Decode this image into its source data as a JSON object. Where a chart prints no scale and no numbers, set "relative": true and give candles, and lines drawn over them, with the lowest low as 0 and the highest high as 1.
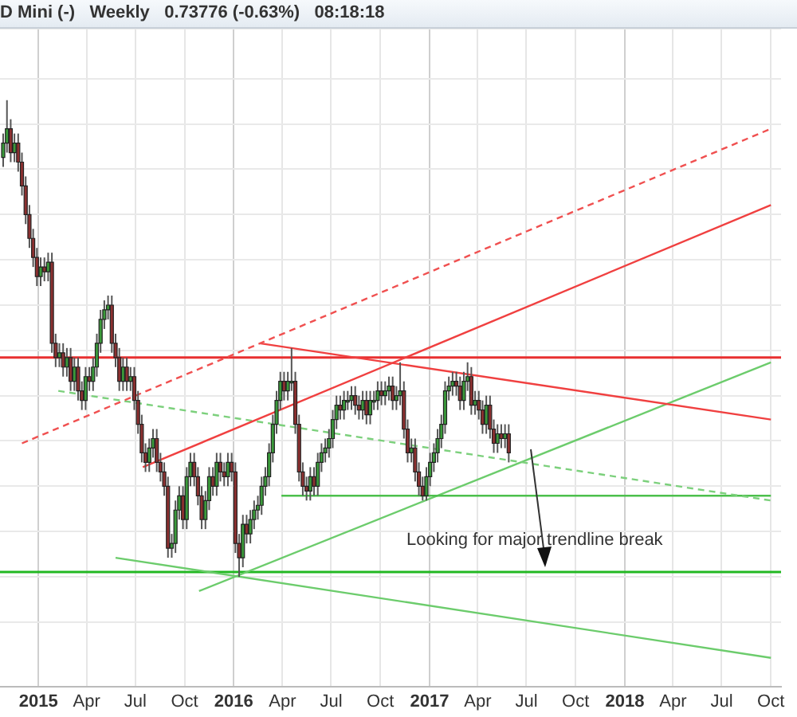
{
  "chart_data": {
    "type": "candlestick",
    "title": "D Mini (-)   Weekly   0.73776 (-0.63%)   08:18:18",
    "relative": true,
    "grid": true,
    "marker": "none",
    "x": [
      "2014-10-27",
      "2014-11-03",
      "2014-11-10",
      "2014-11-17",
      "2014-11-24",
      "2014-12-01",
      "2014-12-08",
      "2014-12-15",
      "2014-12-22",
      "2014-12-29",
      "2015-01-05",
      "2015-01-12",
      "2015-01-19",
      "2015-01-26",
      "2015-02-02",
      "2015-02-09",
      "2015-02-16",
      "2015-02-23",
      "2015-03-02",
      "2015-03-09",
      "2015-03-16",
      "2015-03-23",
      "2015-03-30",
      "2015-04-06",
      "2015-04-13",
      "2015-04-20",
      "2015-04-27",
      "2015-05-04",
      "2015-05-11",
      "2015-05-18",
      "2015-05-25",
      "2015-06-01",
      "2015-06-08",
      "2015-06-15",
      "2015-06-22",
      "2015-06-29",
      "2015-07-06",
      "2015-07-13",
      "2015-07-20",
      "2015-07-27",
      "2015-08-03",
      "2015-08-10",
      "2015-08-17",
      "2015-08-24",
      "2015-08-31",
      "2015-09-07",
      "2015-09-14",
      "2015-09-21",
      "2015-09-28",
      "2015-10-05",
      "2015-10-12",
      "2015-10-19",
      "2015-10-26",
      "2015-11-02",
      "2015-11-09",
      "2015-11-16",
      "2015-11-23",
      "2015-11-30",
      "2015-12-07",
      "2015-12-14",
      "2015-12-21",
      "2015-12-28",
      "2016-01-04",
      "2016-01-11",
      "2016-01-18",
      "2016-01-25",
      "2016-02-01",
      "2016-02-08",
      "2016-02-15",
      "2016-02-22",
      "2016-02-29",
      "2016-03-07",
      "2016-03-14",
      "2016-03-21",
      "2016-03-28",
      "2016-04-04",
      "2016-04-11",
      "2016-04-18",
      "2016-04-25",
      "2016-05-02",
      "2016-05-09",
      "2016-05-16",
      "2016-05-23",
      "2016-05-30",
      "2016-06-06",
      "2016-06-13",
      "2016-06-20",
      "2016-06-27",
      "2016-07-04",
      "2016-07-11",
      "2016-07-18",
      "2016-07-25",
      "2016-08-01",
      "2016-08-08",
      "2016-08-15",
      "2016-08-22",
      "2016-08-29",
      "2016-09-05",
      "2016-09-12",
      "2016-09-19",
      "2016-09-26",
      "2016-10-03",
      "2016-10-10",
      "2016-10-17",
      "2016-10-24",
      "2016-10-31",
      "2016-11-07",
      "2016-11-14",
      "2016-11-21",
      "2016-11-28",
      "2016-12-05",
      "2016-12-12",
      "2016-12-19",
      "2016-12-26",
      "2017-01-02",
      "2017-01-09",
      "2017-01-16",
      "2017-01-23",
      "2017-01-30",
      "2017-02-06",
      "2017-02-13",
      "2017-02-20",
      "2017-02-27",
      "2017-03-06",
      "2017-03-13",
      "2017-03-20",
      "2017-03-27",
      "2017-04-03",
      "2017-04-10",
      "2017-04-17",
      "2017-04-24",
      "2017-05-01",
      "2017-05-08",
      "2017-05-15",
      "2017-05-22",
      "2017-05-29"
    ],
    "ohlc": [
      [
        0.88,
        0.93,
        0.86,
        0.91
      ],
      [
        0.91,
        1,
        0.89,
        0.94
      ],
      [
        0.94,
        0.96,
        0.87,
        0.89
      ],
      [
        0.89,
        0.93,
        0.87,
        0.91
      ],
      [
        0.91,
        0.93,
        0.85,
        0.87
      ],
      [
        0.87,
        0.89,
        0.8,
        0.82
      ],
      [
        0.82,
        0.84,
        0.74,
        0.76
      ],
      [
        0.76,
        0.78,
        0.69,
        0.71
      ],
      [
        0.71,
        0.73,
        0.65,
        0.67
      ],
      [
        0.67,
        0.69,
        0.61,
        0.63
      ],
      [
        0.63,
        0.67,
        0.61,
        0.65
      ],
      [
        0.65,
        0.67,
        0.62,
        0.64
      ],
      [
        0.64,
        0.68,
        0.62,
        0.66
      ],
      [
        0.66,
        0.68,
        0.47,
        0.49
      ],
      [
        0.49,
        0.51,
        0.44,
        0.46
      ],
      [
        0.46,
        0.49,
        0.44,
        0.47
      ],
      [
        0.47,
        0.49,
        0.42,
        0.44
      ],
      [
        0.44,
        0.48,
        0.42,
        0.46
      ],
      [
        0.46,
        0.48,
        0.39,
        0.41
      ],
      [
        0.41,
        0.46,
        0.39,
        0.44
      ],
      [
        0.44,
        0.46,
        0.37,
        0.39
      ],
      [
        0.39,
        0.41,
        0.35,
        0.37
      ],
      [
        0.37,
        0.44,
        0.35,
        0.42
      ],
      [
        0.42,
        0.44,
        0.39,
        0.41
      ],
      [
        0.41,
        0.46,
        0.39,
        0.44
      ],
      [
        0.44,
        0.51,
        0.42,
        0.49
      ],
      [
        0.49,
        0.56,
        0.47,
        0.54
      ],
      [
        0.54,
        0.58,
        0.52,
        0.56
      ],
      [
        0.56,
        0.59,
        0.54,
        0.57
      ],
      [
        0.57,
        0.59,
        0.47,
        0.49
      ],
      [
        0.49,
        0.51,
        0.44,
        0.46
      ],
      [
        0.46,
        0.48,
        0.39,
        0.41
      ],
      [
        0.41,
        0.46,
        0.39,
        0.44
      ],
      [
        0.44,
        0.46,
        0.39,
        0.41
      ],
      [
        0.41,
        0.44,
        0.39,
        0.42
      ],
      [
        0.42,
        0.44,
        0.35,
        0.37
      ],
      [
        0.37,
        0.39,
        0.3,
        0.32
      ],
      [
        0.32,
        0.34,
        0.24,
        0.26
      ],
      [
        0.26,
        0.28,
        0.22,
        0.24
      ],
      [
        0.24,
        0.29,
        0.22,
        0.27
      ],
      [
        0.27,
        0.31,
        0.25,
        0.29
      ],
      [
        0.29,
        0.31,
        0.22,
        0.24
      ],
      [
        0.24,
        0.26,
        0.2,
        0.22
      ],
      [
        0.22,
        0.24,
        0.17,
        0.19
      ],
      [
        0.19,
        0.21,
        0.04,
        0.06
      ],
      [
        0.06,
        0.09,
        0.04,
        0.07
      ],
      [
        0.07,
        0.16,
        0.05,
        0.14
      ],
      [
        0.14,
        0.19,
        0.12,
        0.17
      ],
      [
        0.17,
        0.19,
        0.1,
        0.12
      ],
      [
        0.12,
        0.23,
        0.1,
        0.21
      ],
      [
        0.21,
        0.26,
        0.19,
        0.24
      ],
      [
        0.24,
        0.26,
        0.19,
        0.21
      ],
      [
        0.21,
        0.23,
        0.15,
        0.17
      ],
      [
        0.17,
        0.19,
        0.1,
        0.12
      ],
      [
        0.12,
        0.18,
        0.1,
        0.16
      ],
      [
        0.16,
        0.23,
        0.14,
        0.21
      ],
      [
        0.21,
        0.23,
        0.17,
        0.19
      ],
      [
        0.19,
        0.26,
        0.17,
        0.24
      ],
      [
        0.24,
        0.26,
        0.2,
        0.22
      ],
      [
        0.22,
        0.24,
        0.19,
        0.21
      ],
      [
        0.21,
        0.26,
        0.19,
        0.24
      ],
      [
        0.24,
        0.26,
        0.2,
        0.22
      ],
      [
        0.22,
        0.24,
        0.05,
        0.07
      ],
      [
        0.07,
        0.09,
        0,
        0.04
      ],
      [
        0.04,
        0.13,
        0.02,
        0.11
      ],
      [
        0.11,
        0.13,
        0.07,
        0.09
      ],
      [
        0.09,
        0.14,
        0.07,
        0.12
      ],
      [
        0.12,
        0.16,
        0.1,
        0.14
      ],
      [
        0.14,
        0.17,
        0.12,
        0.15
      ],
      [
        0.15,
        0.21,
        0.13,
        0.19
      ],
      [
        0.19,
        0.23,
        0.17,
        0.21
      ],
      [
        0.21,
        0.28,
        0.19,
        0.26
      ],
      [
        0.26,
        0.34,
        0.24,
        0.32
      ],
      [
        0.32,
        0.39,
        0.3,
        0.37
      ],
      [
        0.37,
        0.43,
        0.35,
        0.41
      ],
      [
        0.41,
        0.43,
        0.37,
        0.39
      ],
      [
        0.39,
        0.43,
        0.37,
        0.41
      ],
      [
        0.41,
        0.48,
        0.39,
        0.41
      ],
      [
        0.41,
        0.43,
        0.3,
        0.32
      ],
      [
        0.32,
        0.34,
        0.2,
        0.22
      ],
      [
        0.22,
        0.24,
        0.17,
        0.19
      ],
      [
        0.19,
        0.21,
        0.16,
        0.18
      ],
      [
        0.18,
        0.23,
        0.16,
        0.21
      ],
      [
        0.21,
        0.23,
        0.17,
        0.19
      ],
      [
        0.19,
        0.26,
        0.17,
        0.24
      ],
      [
        0.24,
        0.28,
        0.22,
        0.26
      ],
      [
        0.26,
        0.29,
        0.24,
        0.27
      ],
      [
        0.27,
        0.31,
        0.25,
        0.29
      ],
      [
        0.29,
        0.35,
        0.27,
        0.33
      ],
      [
        0.33,
        0.38,
        0.31,
        0.36
      ],
      [
        0.36,
        0.38,
        0.33,
        0.35
      ],
      [
        0.35,
        0.39,
        0.33,
        0.37
      ],
      [
        0.37,
        0.39,
        0.35,
        0.37
      ],
      [
        0.37,
        0.4,
        0.35,
        0.38
      ],
      [
        0.38,
        0.4,
        0.34,
        0.36
      ],
      [
        0.36,
        0.38,
        0.33,
        0.35
      ],
      [
        0.35,
        0.39,
        0.33,
        0.37
      ],
      [
        0.37,
        0.39,
        0.32,
        0.34
      ],
      [
        0.34,
        0.39,
        0.32,
        0.37
      ],
      [
        0.37,
        0.39,
        0.35,
        0.37
      ],
      [
        0.37,
        0.41,
        0.35,
        0.39
      ],
      [
        0.39,
        0.41,
        0.36,
        0.38
      ],
      [
        0.38,
        0.41,
        0.36,
        0.39
      ],
      [
        0.39,
        0.42,
        0.37,
        0.4
      ],
      [
        0.4,
        0.42,
        0.35,
        0.37
      ],
      [
        0.37,
        0.4,
        0.35,
        0.38
      ],
      [
        0.38,
        0.45,
        0.36,
        0.39
      ],
      [
        0.39,
        0.41,
        0.29,
        0.31
      ],
      [
        0.31,
        0.33,
        0.24,
        0.26
      ],
      [
        0.26,
        0.29,
        0.24,
        0.27
      ],
      [
        0.27,
        0.29,
        0.2,
        0.22
      ],
      [
        0.22,
        0.24,
        0.17,
        0.19
      ],
      [
        0.19,
        0.21,
        0.16,
        0.17
      ],
      [
        0.17,
        0.23,
        0.16,
        0.21
      ],
      [
        0.21,
        0.26,
        0.19,
        0.24
      ],
      [
        0.24,
        0.28,
        0.22,
        0.26
      ],
      [
        0.26,
        0.31,
        0.24,
        0.29
      ],
      [
        0.29,
        0.34,
        0.27,
        0.32
      ],
      [
        0.32,
        0.41,
        0.3,
        0.39
      ],
      [
        0.39,
        0.42,
        0.37,
        0.4
      ],
      [
        0.4,
        0.43,
        0.38,
        0.41
      ],
      [
        0.41,
        0.43,
        0.38,
        0.4
      ],
      [
        0.4,
        0.42,
        0.35,
        0.37
      ],
      [
        0.37,
        0.43,
        0.35,
        0.41
      ],
      [
        0.41,
        0.45,
        0.39,
        0.42
      ],
      [
        0.42,
        0.44,
        0.34,
        0.36
      ],
      [
        0.36,
        0.39,
        0.34,
        0.37
      ],
      [
        0.37,
        0.39,
        0.33,
        0.35
      ],
      [
        0.35,
        0.37,
        0.3,
        0.32
      ],
      [
        0.32,
        0.38,
        0.3,
        0.36
      ],
      [
        0.36,
        0.38,
        0.29,
        0.31
      ],
      [
        0.31,
        0.33,
        0.26,
        0.28
      ],
      [
        0.28,
        0.32,
        0.26,
        0.3
      ],
      [
        0.3,
        0.32,
        0.27,
        0.29
      ],
      [
        0.29,
        0.32,
        0.27,
        0.3
      ],
      [
        0.3,
        0.32,
        0.24,
        0.26
      ]
    ],
    "xlim": [
      "2014-10-21",
      "2018-10-20"
    ],
    "xticks": [
      {
        "value": "2015-01-01",
        "label": "2015"
      },
      {
        "value": "2015-04-01",
        "label": "Apr"
      },
      {
        "value": "2015-07-01",
        "label": "Jul"
      },
      {
        "value": "2015-10-01",
        "label": "Oct"
      },
      {
        "value": "2016-01-01",
        "label": "2016"
      },
      {
        "value": "2016-04-01",
        "label": "Apr"
      },
      {
        "value": "2016-07-01",
        "label": "Jul"
      },
      {
        "value": "2016-10-01",
        "label": "Oct"
      },
      {
        "value": "2017-01-01",
        "label": "2017"
      },
      {
        "value": "2017-04-01",
        "label": "Apr"
      },
      {
        "value": "2017-07-01",
        "label": "Jul"
      },
      {
        "value": "2017-10-01",
        "label": "Oct"
      },
      {
        "value": "2018-01-01",
        "label": "2018"
      },
      {
        "value": "2018-04-01",
        "label": "Apr"
      },
      {
        "value": "2018-07-01",
        "label": "Jul"
      },
      {
        "value": "2018-10-01",
        "label": "Oct"
      }
    ],
    "series": [
      {
        "type": "line",
        "color": "#f05050",
        "line_style": "dashed",
        "x": [
          "2014-12-01",
          "2018-10-01"
        ],
        "values": [
          0.28,
          0.94
        ]
      },
      {
        "type": "line",
        "color": "#f04040",
        "line_style": "solid",
        "x": [
          "2015-07-15",
          "2018-10-01"
        ],
        "values": [
          0.23,
          0.78
        ]
      },
      {
        "type": "line",
        "color": "#f04040",
        "line_style": "solid",
        "x": [
          "2016-02-18",
          "2018-10-01"
        ],
        "values": [
          0.49,
          0.33
        ]
      },
      {
        "type": "line",
        "color": "#7cd07c",
        "line_style": "dashed",
        "x": [
          "2015-02-07",
          "2018-10-01"
        ],
        "values": [
          0.39,
          0.16
        ]
      },
      {
        "type": "line",
        "color": "#4cc04c",
        "line_style": "solid",
        "x": [
          "2016-03-30",
          "2018-10-01"
        ],
        "values": [
          0.17,
          0.17
        ]
      },
      {
        "type": "line",
        "color": "#6ccc6c",
        "line_style": "solid",
        "x": [
          "2015-10-28",
          "2018-10-01"
        ],
        "values": [
          -0.03,
          0.45
        ]
      },
      {
        "type": "line",
        "color": "#6ccc6c",
        "line_style": "solid",
        "x": [
          "2015-05-25",
          "2018-10-01"
        ],
        "values": [
          0.04,
          -0.17
        ]
      }
    ],
    "ref_lines": [
      {
        "axis": "y",
        "value": 0.46,
        "color": "#e83030"
      },
      {
        "axis": "y",
        "value": 0.01,
        "color": "#22b822"
      }
    ],
    "annotations": [
      "Looking for major trendline break"
    ]
  }
}
